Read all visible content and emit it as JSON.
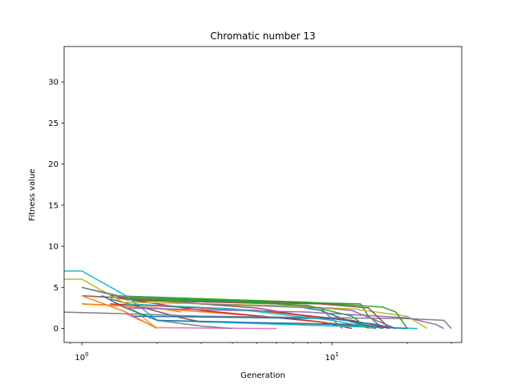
{
  "chart_data": {
    "type": "line",
    "title": "Chromatic number 13",
    "xlabel": "Generation",
    "ylabel": "Fitness value",
    "xscale": "log",
    "xlim": [
      0.85,
      33
    ],
    "ylim": [
      -1.7,
      34.3
    ],
    "xticks": [
      {
        "value": 1,
        "base": "10",
        "exp": "0"
      },
      {
        "value": 10,
        "base": "10",
        "exp": "1"
      }
    ],
    "yticks": [
      0,
      5,
      10,
      15,
      20,
      25,
      30
    ],
    "grid": false,
    "legend": "none",
    "series": [
      {
        "color": "#1f77b4",
        "x": [
          1,
          1.5,
          6,
          9,
          12,
          16
        ],
        "y": [
          5,
          3.7,
          3.1,
          2.2,
          0.8,
          0
        ]
      },
      {
        "color": "#ff7f0e",
        "x": [
          1,
          2,
          2.5
        ],
        "y": [
          3,
          2.5,
          2
        ]
      },
      {
        "color": "#ff7f0e",
        "x": [
          1,
          1.4,
          7,
          15
        ],
        "y": [
          3,
          2.8,
          1.2,
          0
        ]
      },
      {
        "color": "#2ca02c",
        "x": [
          1.4,
          5,
          13,
          14,
          16
        ],
        "y": [
          3.8,
          3.3,
          3,
          1.5,
          0
        ]
      },
      {
        "color": "#d62728",
        "x": [
          1.4,
          3,
          9,
          12
        ],
        "y": [
          3.7,
          2.2,
          0.8,
          0
        ]
      },
      {
        "color": "#9467bd",
        "x": [
          1.5,
          6,
          12,
          18
        ],
        "y": [
          3.5,
          3,
          2.2,
          0
        ]
      },
      {
        "color": "#8c564b",
        "x": [
          1,
          1.3,
          5,
          10
        ],
        "y": [
          4,
          3.8,
          2.5,
          1
        ]
      },
      {
        "color": "#8c564b",
        "x": [
          1.3,
          2.5,
          3,
          13,
          15
        ],
        "y": [
          3.6,
          1.3,
          0.8,
          0.5,
          0
        ]
      },
      {
        "color": "#e377c2",
        "x": [
          1.5,
          2,
          6
        ],
        "y": [
          1.8,
          0.1,
          0
        ]
      },
      {
        "color": "#7f7f7f",
        "x": [
          0.85,
          1.5,
          3,
          20,
          28,
          30
        ],
        "y": [
          2,
          1.8,
          1.5,
          1.2,
          1,
          0
        ]
      },
      {
        "color": "#7f7f7f",
        "x": [
          1.5,
          2,
          3,
          4
        ],
        "y": [
          2.5,
          1,
          0.3,
          0
        ]
      },
      {
        "color": "#bcbd22",
        "x": [
          0.85,
          1,
          1.5,
          2
        ],
        "y": [
          6,
          6,
          3,
          0
        ]
      },
      {
        "color": "#bcbd22",
        "x": [
          1.5,
          6,
          12,
          20,
          24
        ],
        "y": [
          3.2,
          2.8,
          2.4,
          1.5,
          0
        ]
      },
      {
        "color": "#17becf",
        "x": [
          0.85,
          1,
          1.5,
          2,
          8,
          22
        ],
        "y": [
          7,
          7,
          4,
          1,
          0.4,
          0
        ]
      },
      {
        "color": "#1f77b4",
        "x": [
          1.2,
          1.5,
          2,
          10,
          20
        ],
        "y": [
          4,
          2.5,
          1,
          0.5,
          0
        ]
      },
      {
        "color": "#ff7f0e",
        "x": [
          1,
          1.5,
          2
        ],
        "y": [
          4,
          2,
          0
        ]
      },
      {
        "color": "#2ca02c",
        "x": [
          1.3,
          8,
          16,
          18,
          20
        ],
        "y": [
          4,
          3.2,
          2.6,
          2,
          0
        ]
      },
      {
        "color": "#d62728",
        "x": [
          1.3,
          5,
          12,
          17
        ],
        "y": [
          3,
          2.2,
          1,
          0
        ]
      },
      {
        "color": "#9467bd",
        "x": [
          1.5,
          8,
          20,
          26,
          28
        ],
        "y": [
          2.5,
          2,
          1.3,
          0.5,
          0
        ]
      },
      {
        "color": "#8c564b",
        "x": [
          1.6,
          9,
          14,
          17
        ],
        "y": [
          3.4,
          3,
          2.5,
          0
        ]
      },
      {
        "color": "#7f7f7f",
        "x": [
          1,
          1.4,
          3,
          9,
          11
        ],
        "y": [
          5,
          4,
          3,
          2.5,
          0
        ]
      },
      {
        "color": "#1f77b4",
        "x": [
          1.6,
          10,
          15,
          18
        ],
        "y": [
          1.5,
          1.2,
          0.5,
          0
        ]
      },
      {
        "color": "#17becf",
        "x": [
          1.5,
          4,
          10,
          15
        ],
        "y": [
          3,
          2.4,
          1,
          0
        ]
      },
      {
        "color": "#2ca02c",
        "x": [
          1.5,
          4,
          8,
          12,
          14
        ],
        "y": [
          3.6,
          3.3,
          2.8,
          1.5,
          0
        ]
      }
    ]
  }
}
